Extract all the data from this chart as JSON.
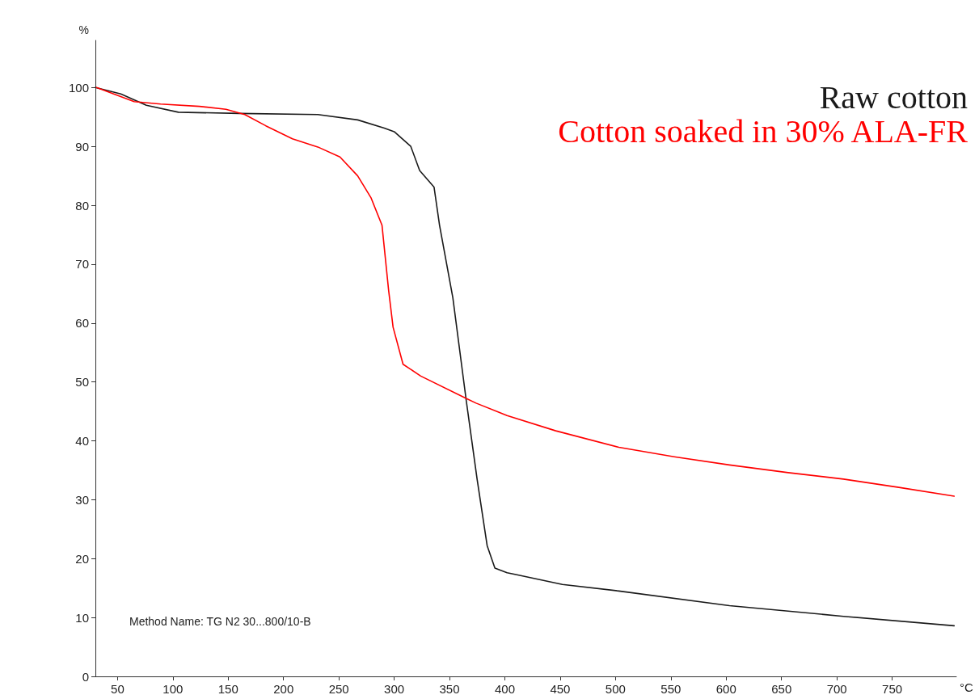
{
  "chart_data": {
    "type": "line",
    "xlabel": "°C",
    "ylabel": "%",
    "xlim": [
      30,
      808
    ],
    "ylim": [
      0,
      108
    ],
    "xticks": [
      50,
      100,
      150,
      200,
      250,
      300,
      350,
      400,
      450,
      500,
      550,
      600,
      650,
      700,
      750
    ],
    "yticks": [
      0,
      10,
      20,
      30,
      40,
      50,
      60,
      70,
      80,
      90,
      100
    ],
    "grid": false,
    "legend": "top right",
    "marker": "none",
    "line_style": "solid",
    "annotations": [
      "Method Name: TG N2 30...800/10-B"
    ],
    "series": [
      {
        "name": "Raw cotton",
        "color": "#1a1a1a",
        "x": [
          30,
          53,
          76,
          105,
          160,
          231,
          267,
          291,
          300,
          315,
          323,
          336,
          341,
          353,
          365,
          375,
          384,
          391,
          402,
          410,
          452,
          503,
          603,
          706,
          806
        ],
        "values": [
          100,
          98.9,
          97.0,
          95.8,
          95.6,
          95.4,
          94.5,
          93.1,
          92.5,
          90.0,
          85.9,
          83.1,
          76.6,
          64.3,
          47,
          33.4,
          22.2,
          18.4,
          17.6,
          17.3,
          15.6,
          14.5,
          12.0,
          10.2,
          8.6
        ]
      },
      {
        "name": "Cotton soaked in 30% ALA-FR",
        "color": "#ff0000",
        "x": [
          31,
          65,
          89,
          124,
          148,
          165,
          184,
          208,
          231,
          251,
          267,
          279,
          289,
          295,
          299,
          308,
          324,
          365,
          374,
          402,
          446,
          503,
          553,
          603,
          656,
          706,
          756,
          806
        ],
        "values": [
          100,
          97.6,
          97.2,
          96.8,
          96.3,
          95.4,
          93.5,
          91.3,
          89.9,
          88.2,
          85.0,
          81.3,
          76.6,
          65.5,
          59.3,
          53.0,
          51.0,
          47.2,
          46.4,
          44.3,
          41.7,
          38.9,
          37.3,
          35.9,
          34.6,
          33.5,
          32.1,
          30.6
        ]
      }
    ]
  }
}
